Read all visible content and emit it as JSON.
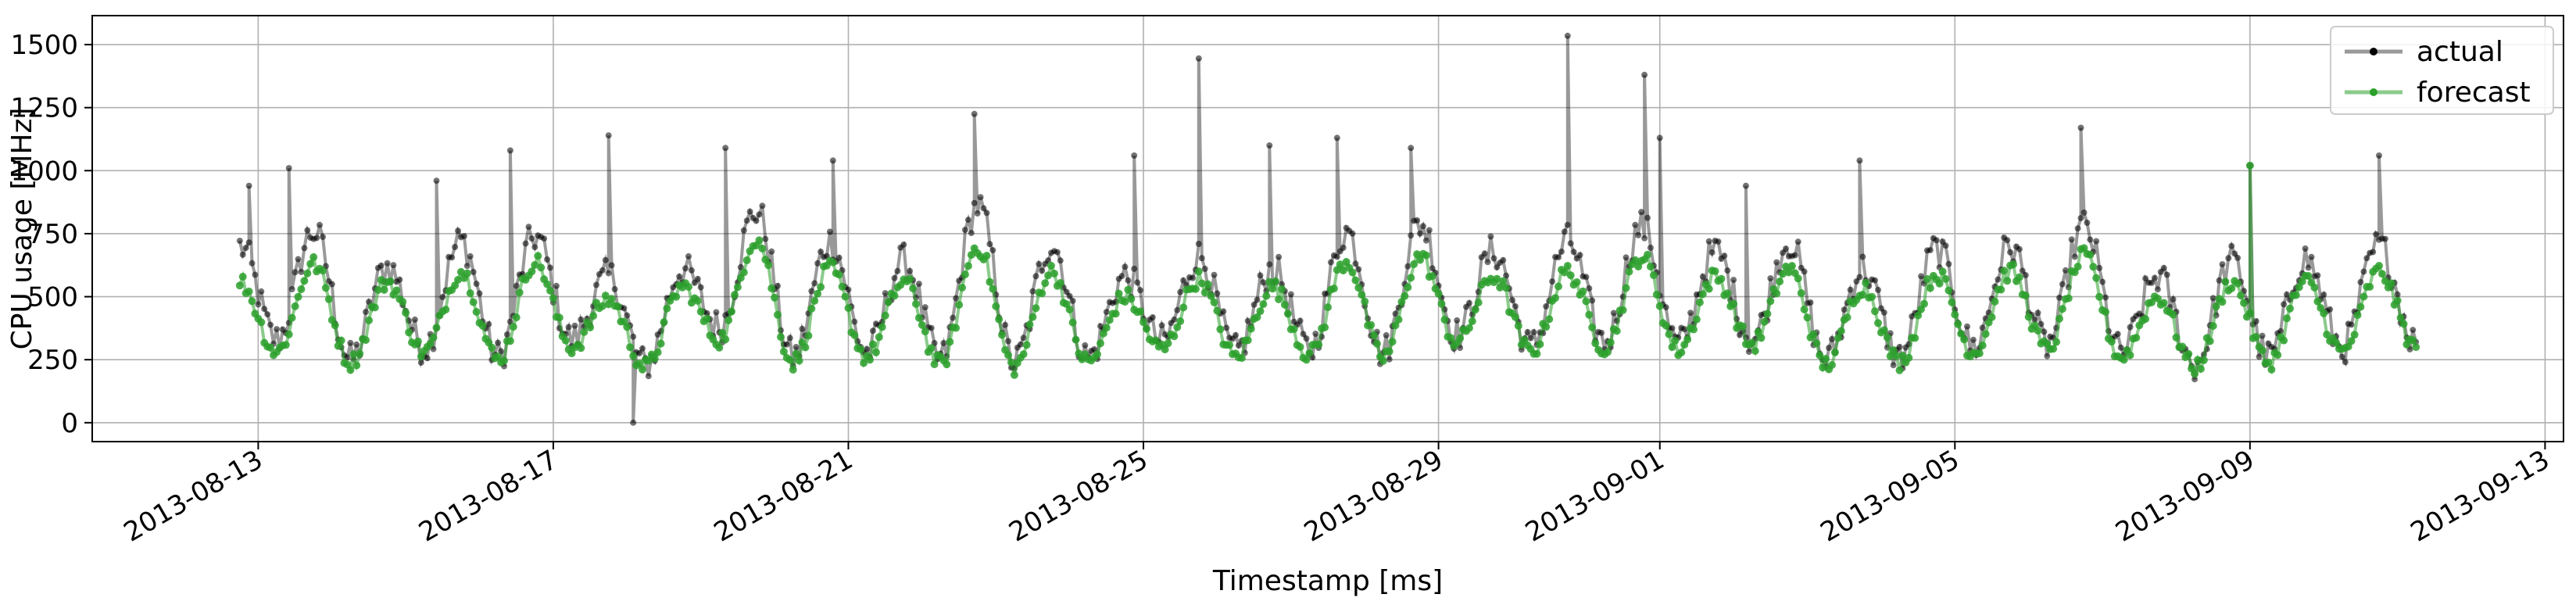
{
  "chart_data": {
    "type": "line",
    "title": "",
    "xlabel": "Timestamp [ms]",
    "ylabel": "CPU usage [MHz]",
    "x_ticks": [
      "2013-08-13",
      "2013-08-17",
      "2013-08-21",
      "2013-08-25",
      "2013-08-29",
      "2013-09-01",
      "2013-09-05",
      "2013-09-09",
      "2013-09-13"
    ],
    "y_ticks": [
      "0",
      "250",
      "500",
      "750",
      "1000",
      "1250",
      "1500"
    ],
    "xlim": [
      "2013-08-10T18:00",
      "2013-09-13T06:00"
    ],
    "ylim": [
      -75,
      1615
    ],
    "grid": true,
    "legend_position": "top-right",
    "x_range": [
      "2013-08-12T18:00",
      "2013-09-11T06:00"
    ],
    "series": [
      {
        "name": "actual",
        "color": "#000000",
        "marker": "dot",
        "values": [
          700,
          330,
          760,
          250,
          620,
          300,
          720,
          260,
          740,
          330,
          580,
          230,
          610,
          380,
          840,
          260,
          720,
          280,
          640,
          250,
          860,
          240,
          710,
          260,
          580,
          320,
          660,
          280,
          610,
          290,
          760,
          280,
          790,
          350,
          680,
          300,
          720,
          320,
          780,
          310,
          680,
          330,
          720,
          250,
          610,
          260,
          690,
          300,
          700,
          310,
          780,
          280,
          580,
          230,
          640,
          260,
          650,
          300,
          700,
          320
        ],
        "spikes": [
          {
            "x": "2013-08-12T21:00",
            "y": 940
          },
          {
            "x": "2013-08-13T10:00",
            "y": 1010
          },
          {
            "x": "2013-08-15T10:00",
            "y": 960
          },
          {
            "x": "2013-08-16T10:00",
            "y": 1080
          },
          {
            "x": "2013-08-17T18:00",
            "y": 1140
          },
          {
            "x": "2013-08-18T02:00",
            "y": 0
          },
          {
            "x": "2013-08-19T08:00",
            "y": 1090
          },
          {
            "x": "2013-08-20T19:00",
            "y": 1040
          },
          {
            "x": "2013-08-22T17:00",
            "y": 1225
          },
          {
            "x": "2013-08-24T21:00",
            "y": 1060
          },
          {
            "x": "2013-08-25T18:00",
            "y": 1445
          },
          {
            "x": "2013-08-26T17:00",
            "y": 1100
          },
          {
            "x": "2013-08-27T15:00",
            "y": 1130
          },
          {
            "x": "2013-08-28T15:00",
            "y": 1090
          },
          {
            "x": "2013-08-30T18:00",
            "y": 1535
          },
          {
            "x": "2013-08-31T19:00",
            "y": 1380
          },
          {
            "x": "2013-09-01T00:00",
            "y": 1130
          },
          {
            "x": "2013-09-02T04:00",
            "y": 940
          },
          {
            "x": "2013-09-03T17:00",
            "y": 1040
          },
          {
            "x": "2013-09-06T17:00",
            "y": 1170
          },
          {
            "x": "2013-09-09T00:00",
            "y": 1020
          },
          {
            "x": "2013-09-10T18:00",
            "y": 1060
          }
        ]
      },
      {
        "name": "forecast",
        "color": "#2ca02c",
        "marker": "dot",
        "values": [
          560,
          280,
          630,
          240,
          560,
          280,
          600,
          250,
          640,
          300,
          490,
          220,
          540,
          330,
          730,
          240,
          610,
          260,
          560,
          230,
          700,
          220,
          600,
          240,
          500,
          290,
          570,
          260,
          540,
          270,
          640,
          260,
          660,
          320,
          580,
          280,
          600,
          300,
          660,
          290,
          580,
          310,
          610,
          230,
          540,
          240,
          590,
          280,
          600,
          290,
          660,
          260,
          500,
          220,
          560,
          240,
          560,
          280,
          600,
          300
        ],
        "spikes": [
          {
            "x": "2013-09-09T00:00",
            "y": 1020
          }
        ]
      }
    ]
  }
}
